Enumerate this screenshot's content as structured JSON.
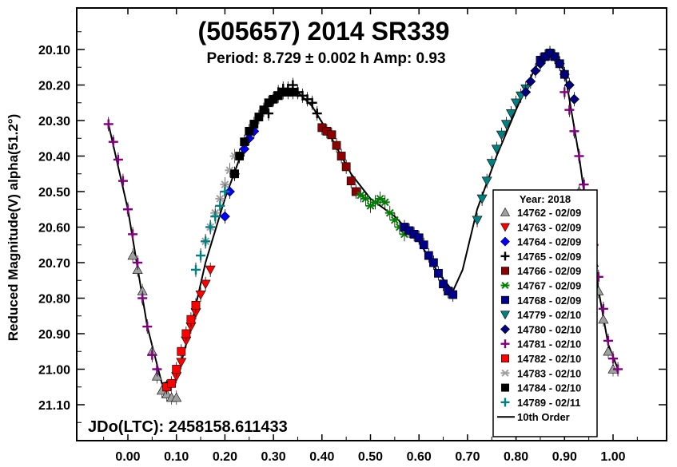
{
  "chart_data": {
    "type": "scatter",
    "title": "(505657) 2014 SR339",
    "subtitle": "Period: 8.729 ± 0.002 h   Amp: 0.93",
    "xlabel": "",
    "ylabel": "Reduced Magnitude(V) alpha(51.2°)",
    "epoch_label": "JDo(LTC): 2458158.611433",
    "xlim": [
      -0.08,
      1.1
    ],
    "ylim": [
      21.2,
      20.0
    ],
    "y_inverted": true,
    "grid": false,
    "legend_position": "bottom-right",
    "legend_title": "Year: 2018",
    "x_ticks": [
      0.0,
      0.1,
      0.2,
      0.3,
      0.4,
      0.5,
      0.6,
      0.7,
      0.8,
      0.9,
      1.0
    ],
    "x_tick_labels": [
      "0.00",
      "0.10",
      "0.20",
      "0.30",
      "0.40",
      "0.50",
      "0.60",
      "0.70",
      "0.80",
      "0.90",
      "1.00"
    ],
    "y_ticks": [
      20.1,
      20.2,
      20.3,
      20.4,
      20.5,
      20.6,
      20.7,
      20.8,
      20.9,
      21.0,
      21.1
    ],
    "y_tick_labels": [
      "20.10",
      "20.20",
      "20.30",
      "20.40",
      "20.50",
      "20.60",
      "20.70",
      "20.80",
      "20.90",
      "21.00",
      "21.10"
    ],
    "series": [
      {
        "name": "14762 - 02/09",
        "marker": "triangle-up",
        "color": "#a0a0a0",
        "x": [
          0.01,
          0.02,
          0.03,
          0.05,
          0.06,
          0.07,
          0.08,
          0.09,
          0.1,
          0.93,
          0.94,
          0.95,
          0.96,
          0.97,
          0.98,
          0.99,
          1.0
        ],
        "y": [
          20.68,
          20.72,
          20.78,
          20.95,
          21.02,
          21.06,
          21.07,
          21.08,
          21.08,
          20.5,
          20.56,
          20.62,
          20.7,
          20.78,
          20.86,
          20.95,
          21.0
        ]
      },
      {
        "name": "14763 - 02/09",
        "marker": "triangle-down",
        "color": "#ff0000",
        "x": [
          0.1,
          0.11,
          0.12,
          0.13,
          0.14,
          0.15,
          0.16,
          0.17
        ],
        "y": [
          21.02,
          20.98,
          20.92,
          20.88,
          20.84,
          20.79,
          20.76,
          20.72
        ]
      },
      {
        "name": "14764 - 02/09",
        "marker": "diamond",
        "color": "#0000ff",
        "x": [
          0.2,
          0.21,
          0.22,
          0.23,
          0.24,
          0.25,
          0.26
        ],
        "y": [
          20.57,
          20.5,
          20.45,
          20.4,
          20.38,
          20.35,
          20.33
        ]
      },
      {
        "name": "14765 - 02/09",
        "marker": "plus",
        "color": "#000000",
        "x": [
          0.29,
          0.3,
          0.31,
          0.32,
          0.33,
          0.34,
          0.35,
          0.36,
          0.37,
          0.38,
          0.39
        ],
        "y": [
          20.28,
          20.24,
          20.22,
          20.21,
          20.21,
          20.2,
          20.22,
          20.23,
          20.24,
          20.25,
          20.28
        ]
      },
      {
        "name": "14766 - 02/09",
        "marker": "square",
        "color": "#8b0000",
        "x": [
          0.4,
          0.41,
          0.42,
          0.43,
          0.44,
          0.45,
          0.46,
          0.47
        ],
        "y": [
          20.32,
          20.33,
          20.34,
          20.37,
          20.4,
          20.43,
          20.47,
          20.5
        ]
      },
      {
        "name": "14767 - 02/09",
        "marker": "asterisk",
        "color": "#008000",
        "x": [
          0.48,
          0.49,
          0.5,
          0.51,
          0.52,
          0.53,
          0.54,
          0.55,
          0.56,
          0.57
        ],
        "y": [
          20.51,
          20.52,
          20.54,
          20.53,
          20.52,
          20.53,
          20.56,
          20.58,
          20.6,
          20.62
        ]
      },
      {
        "name": "14768 - 02/09",
        "marker": "square",
        "color": "#00008b",
        "x": [
          0.57,
          0.58,
          0.59,
          0.6,
          0.61,
          0.62,
          0.63,
          0.64,
          0.65,
          0.66,
          0.67,
          0.85,
          0.86,
          0.87,
          0.88,
          0.89,
          0.9
        ],
        "y": [
          20.6,
          20.61,
          20.62,
          20.63,
          20.65,
          20.68,
          20.7,
          20.73,
          20.76,
          20.78,
          20.79,
          20.13,
          20.12,
          20.11,
          20.12,
          20.14,
          20.17
        ]
      },
      {
        "name": "14779 - 02/10",
        "marker": "triangle-down",
        "color": "#008080",
        "x": [
          0.72,
          0.73,
          0.74,
          0.75,
          0.76,
          0.77,
          0.78,
          0.79,
          0.8,
          0.81,
          0.82
        ],
        "y": [
          20.58,
          20.52,
          20.47,
          20.42,
          20.38,
          20.34,
          20.31,
          20.28,
          20.25,
          20.23,
          20.21
        ]
      },
      {
        "name": "14780 - 02/10",
        "marker": "diamond",
        "color": "#000080",
        "x": [
          0.82,
          0.83,
          0.84,
          0.85,
          0.86,
          0.87,
          0.88,
          0.89,
          0.9,
          0.91,
          0.92
        ],
        "y": [
          20.22,
          20.19,
          20.16,
          20.14,
          20.12,
          20.11,
          20.12,
          20.14,
          20.17,
          20.2,
          20.24
        ]
      },
      {
        "name": "14781 - 02/10",
        "marker": "plus",
        "color": "#800080",
        "x": [
          -0.04,
          -0.03,
          -0.02,
          -0.01,
          0.0,
          0.01,
          0.02,
          0.03,
          0.04,
          0.05,
          0.06,
          0.9,
          0.91,
          0.92,
          0.93,
          0.94,
          0.95,
          0.96,
          0.97,
          0.98,
          0.99,
          1.0,
          1.01
        ],
        "y": [
          20.31,
          20.36,
          20.41,
          20.47,
          20.55,
          20.62,
          20.7,
          20.8,
          20.88,
          20.96,
          21.0,
          20.22,
          20.27,
          20.33,
          20.4,
          20.48,
          20.56,
          20.65,
          20.74,
          20.83,
          20.92,
          20.97,
          21.0
        ]
      },
      {
        "name": "14782 - 02/10",
        "marker": "square",
        "color": "#ff0000",
        "x": [
          0.08,
          0.09,
          0.1,
          0.11,
          0.12,
          0.13,
          0.14
        ],
        "y": [
          21.05,
          21.04,
          21.0,
          20.95,
          20.9,
          20.86,
          20.82
        ]
      },
      {
        "name": "14783 - 02/10",
        "marker": "asterisk",
        "color": "#a0a0a0",
        "x": [
          0.16,
          0.17,
          0.18,
          0.19,
          0.2,
          0.21,
          0.22
        ],
        "y": [
          20.64,
          20.6,
          20.56,
          20.52,
          20.48,
          20.44,
          20.4
        ]
      },
      {
        "name": "14784 - 02/10",
        "marker": "square",
        "color": "#000000",
        "x": [
          0.22,
          0.23,
          0.24,
          0.25,
          0.26,
          0.27,
          0.28,
          0.29,
          0.3,
          0.31,
          0.32,
          0.33,
          0.34
        ],
        "y": [
          20.45,
          20.4,
          20.36,
          20.33,
          20.31,
          20.29,
          20.27,
          20.25,
          20.24,
          20.23,
          20.22,
          20.22,
          20.22
        ]
      },
      {
        "name": "14789 - 02/11",
        "marker": "plus",
        "color": "#008080",
        "x": [
          0.14,
          0.15,
          0.16,
          0.17,
          0.18,
          0.19,
          0.2
        ],
        "y": [
          20.72,
          20.68,
          20.64,
          20.6,
          20.57,
          20.54,
          20.5
        ]
      }
    ],
    "fit": {
      "name": "10th Order",
      "x": [
        -0.04,
        0.0,
        0.04,
        0.07,
        0.1,
        0.13,
        0.16,
        0.2,
        0.24,
        0.28,
        0.32,
        0.35,
        0.38,
        0.42,
        0.46,
        0.5,
        0.55,
        0.6,
        0.64,
        0.67,
        0.69,
        0.72,
        0.76,
        0.8,
        0.84,
        0.87,
        0.9,
        0.93,
        0.96,
        0.99,
        1.01
      ],
      "y": [
        20.31,
        20.55,
        20.88,
        21.04,
        21.03,
        20.88,
        20.7,
        20.52,
        20.37,
        20.26,
        20.21,
        20.22,
        20.26,
        20.35,
        20.45,
        20.52,
        20.57,
        20.64,
        20.73,
        20.78,
        20.72,
        20.55,
        20.4,
        20.27,
        20.15,
        20.11,
        20.16,
        20.4,
        20.7,
        20.93,
        21.0
      ]
    }
  }
}
